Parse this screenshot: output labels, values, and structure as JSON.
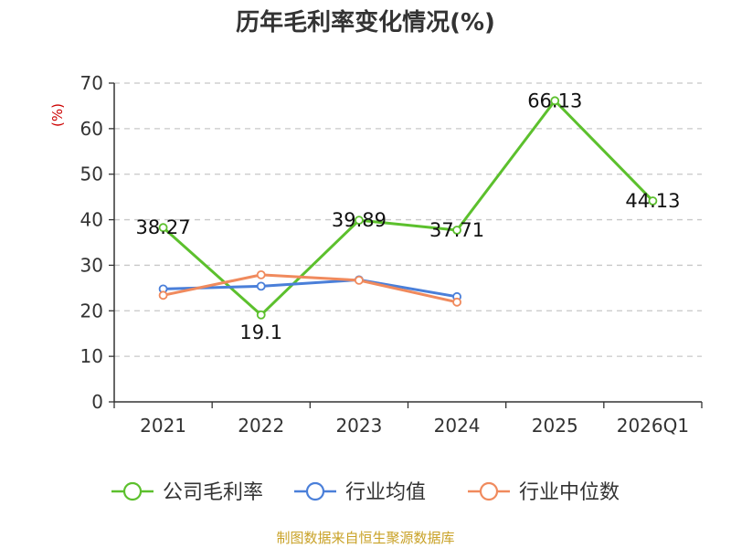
{
  "chart_data": {
    "type": "line",
    "title": "历年毛利率变化情况(%)",
    "ylabel": "(%)",
    "xlabel": "",
    "categories": [
      "2021",
      "2022",
      "2023",
      "2024",
      "2025",
      "2026Q1"
    ],
    "ylim": [
      0,
      70
    ],
    "yticks": [
      0,
      10,
      20,
      30,
      40,
      50,
      60,
      70
    ],
    "grid": true,
    "legend_position": "bottom",
    "series": [
      {
        "name": "公司毛利率",
        "color": "#5cc02d",
        "values": [
          38.27,
          19.1,
          39.89,
          37.71,
          66.13,
          44.13
        ],
        "labels": [
          "38.27",
          "19.1",
          "39.89",
          "37.71",
          "66.13",
          "44.13"
        ]
      },
      {
        "name": "行业均值",
        "color": "#4a7fd9",
        "values": [
          24.8,
          25.4,
          26.8,
          23.1,
          null,
          null
        ],
        "labels": []
      },
      {
        "name": "行业中位数",
        "color": "#f08a5d",
        "values": [
          23.4,
          27.9,
          26.7,
          21.9,
          null,
          null
        ],
        "labels": []
      }
    ],
    "source": "制图数据来自恒生聚源数据库"
  }
}
